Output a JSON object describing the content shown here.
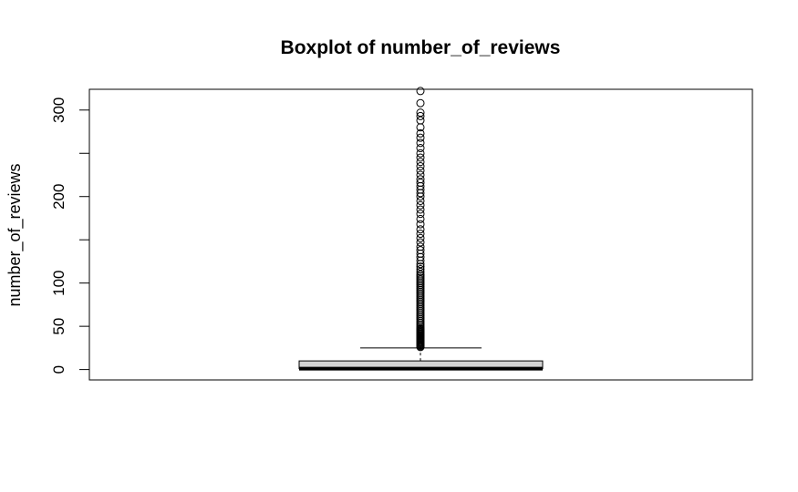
{
  "chart_data": {
    "type": "boxplot",
    "title": "Boxplot of number_of_reviews",
    "ylabel": "number_of_reviews",
    "xlabel": "",
    "ylim": [
      -12,
      324
    ],
    "yticks_major": [
      0,
      50,
      100,
      200,
      300
    ],
    "yticks_minor": [
      150,
      250
    ],
    "box": {
      "min": 0,
      "q1": 1,
      "median": 1,
      "q3": 10,
      "whisker_high": 25
    },
    "outliers": [
      26,
      27,
      28,
      29,
      30,
      31,
      32,
      33,
      34,
      35,
      36,
      37,
      38,
      39,
      40,
      41,
      42,
      43,
      44,
      45,
      46,
      47,
      48,
      50,
      52,
      54,
      56,
      58,
      60,
      62,
      64,
      66,
      68,
      70,
      72,
      74,
      76,
      78,
      80,
      82,
      84,
      86,
      88,
      90,
      92,
      94,
      96,
      98,
      100,
      102,
      104,
      106,
      108,
      110,
      113,
      116,
      119,
      122,
      126,
      130,
      134,
      138,
      142,
      147,
      152,
      157,
      162,
      168,
      174,
      180,
      185,
      190,
      195,
      200,
      204,
      208,
      212,
      216,
      220,
      225,
      230,
      235,
      240,
      245,
      250,
      256,
      262,
      268,
      273,
      280,
      288,
      293,
      297,
      308,
      322
    ],
    "box_fill": "#d3d3d3",
    "grid": false
  }
}
